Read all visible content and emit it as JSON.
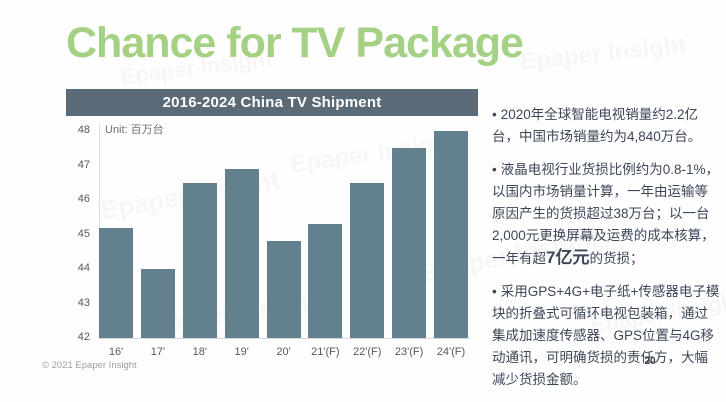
{
  "slide": {
    "title": "Chance for TV Package",
    "watermark_text": "Epaper Insight",
    "footer": {
      "copyright": "© 2021 Epaper Insight",
      "page_number": "20"
    }
  },
  "chart_data": {
    "type": "bar",
    "title": "2016-2024 China TV Shipment",
    "unit_label": "Unit: 百万台",
    "categories": [
      "16'",
      "17'",
      "18'",
      "19'",
      "20'",
      "21'(F)",
      "22'(F)",
      "23'(F)",
      "24'(F)"
    ],
    "values": [
      45.2,
      44.0,
      46.5,
      46.9,
      44.8,
      45.3,
      46.5,
      47.5,
      48.0
    ],
    "ylabel": "",
    "xlabel": "",
    "ylim": [
      42,
      48
    ],
    "yticks": [
      42,
      43,
      44,
      45,
      46,
      47,
      48
    ],
    "grid": false,
    "legend": false,
    "bar_color": "#63808e"
  },
  "bullets": {
    "marker": "•",
    "items": [
      {
        "text": "2020年全球智能电视销量约2.2亿台，中国市场销量约为4,840万台。"
      },
      {
        "pre": "液晶电视行业货损比例约为0.8-1%，以国内市场销量计算，一年由运输等原因产生的货损超过38万台；以一台2,000元更换屏幕及运费的成本核算，一年有超",
        "highlight": "7亿元",
        "post": "的货损；"
      },
      {
        "text": "采用GPS+4G+电子纸+传感器电子模块的折叠式可循环电视包装箱，通过集成加速度传感器、GPS位置与4G移动通讯，可明确货损的责任方，大幅减少货损金额。"
      }
    ]
  },
  "colors": {
    "title_green": "#a4d183",
    "chart_header_bg": "#5a6a76",
    "bar": "#63808e",
    "body_text": "#3c4658"
  }
}
